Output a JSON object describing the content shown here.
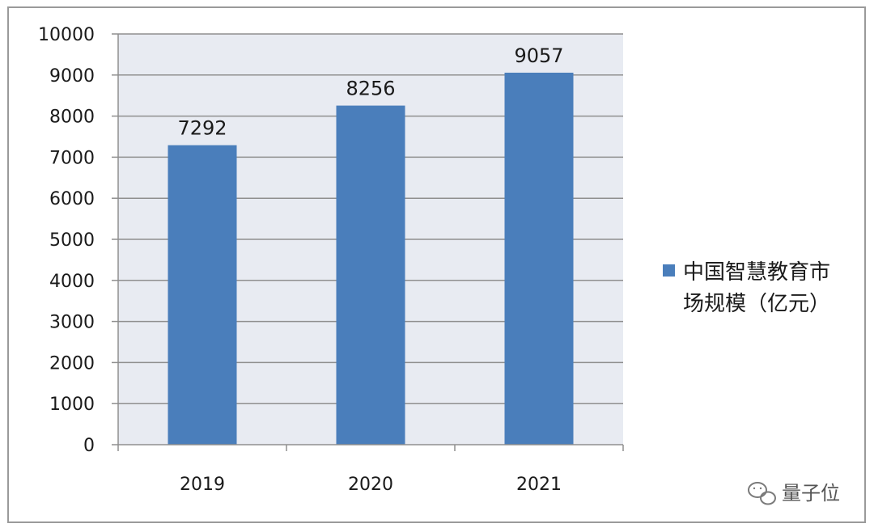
{
  "chart_data": {
    "type": "bar",
    "categories": [
      "2019",
      "2020",
      "2021"
    ],
    "series": [
      {
        "name": "中国智慧教育市场规模（亿元）",
        "values": [
          7292,
          8256,
          9057
        ],
        "color": "#4a7ebb"
      }
    ],
    "data_labels": [
      "7292",
      "8256",
      "9057"
    ],
    "ylim": [
      0,
      10000
    ],
    "yticks": [
      0,
      1000,
      2000,
      3000,
      4000,
      5000,
      6000,
      7000,
      8000,
      9000,
      10000
    ],
    "grid": true,
    "plot_background": "#e8ebf2",
    "legend": {
      "position": "right",
      "lines": [
        "中国智慧教育市",
        "场规模（亿元）"
      ]
    }
  },
  "watermark": {
    "text": "量子位",
    "icon": "wechat-icon"
  }
}
